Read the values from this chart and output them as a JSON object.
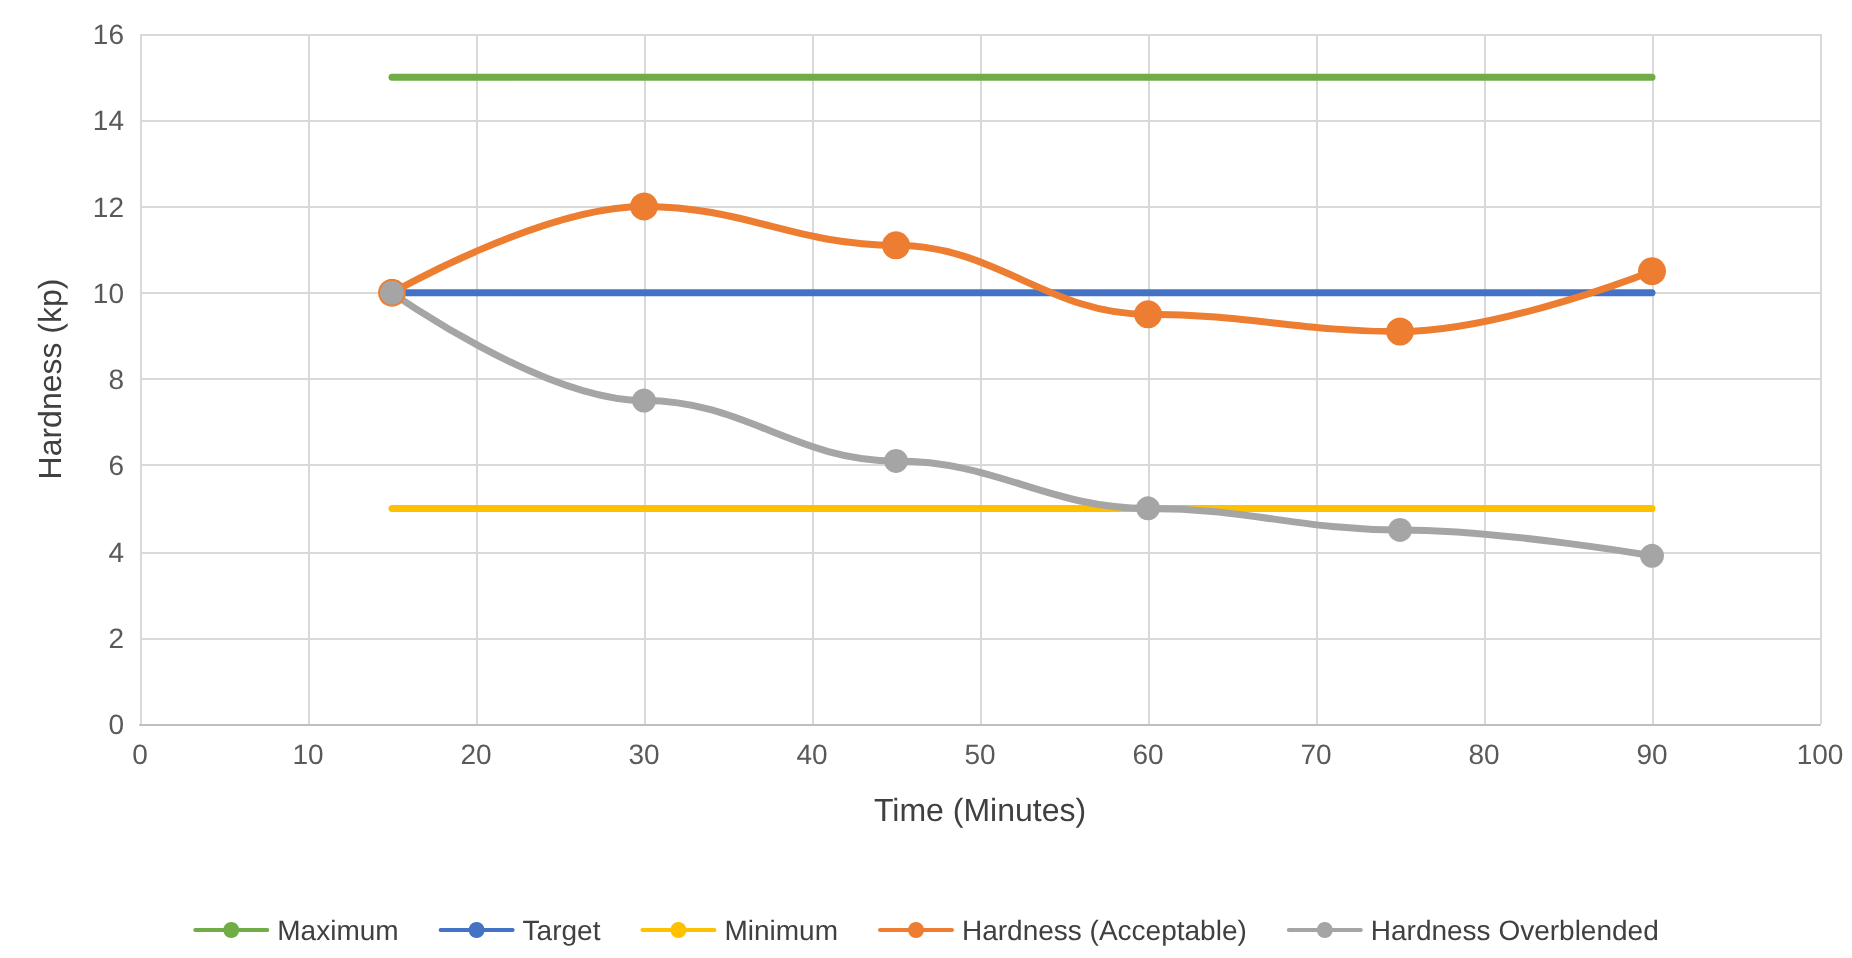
{
  "chart_data": {
    "type": "line",
    "xlabel": "Time (Minutes)",
    "ylabel": "Hardness (kp)",
    "x": [
      15,
      30,
      45,
      60,
      75,
      90
    ],
    "series": [
      {
        "name": "Maximum",
        "color": "#70ad47",
        "values": [
          15,
          15,
          15,
          15,
          15,
          15
        ],
        "marker": "none"
      },
      {
        "name": "Target",
        "color": "#4472c4",
        "values": [
          10,
          10,
          10,
          10,
          10,
          10
        ],
        "marker": "none"
      },
      {
        "name": "Minimum",
        "color": "#ffc000",
        "values": [
          5,
          5,
          5,
          5,
          5,
          5
        ],
        "marker": "none"
      },
      {
        "name": "Hardness (Acceptable)",
        "color": "#ed7d31",
        "values": [
          10,
          12,
          11.1,
          9.5,
          9.1,
          10.5
        ],
        "marker": "circle"
      },
      {
        "name": "Hardness Overblended",
        "color": "#a5a5a5",
        "values": [
          10,
          7.5,
          6.1,
          5,
          4.5,
          3.9
        ],
        "marker": "circle"
      }
    ],
    "xlim": [
      0,
      100
    ],
    "xticks": [
      0,
      10,
      20,
      30,
      40,
      50,
      60,
      70,
      80,
      90,
      100
    ],
    "ylim": [
      0,
      16
    ],
    "yticks": [
      0,
      2,
      4,
      6,
      8,
      10,
      12,
      14,
      16
    ],
    "grid": true,
    "legend": "bottom"
  }
}
